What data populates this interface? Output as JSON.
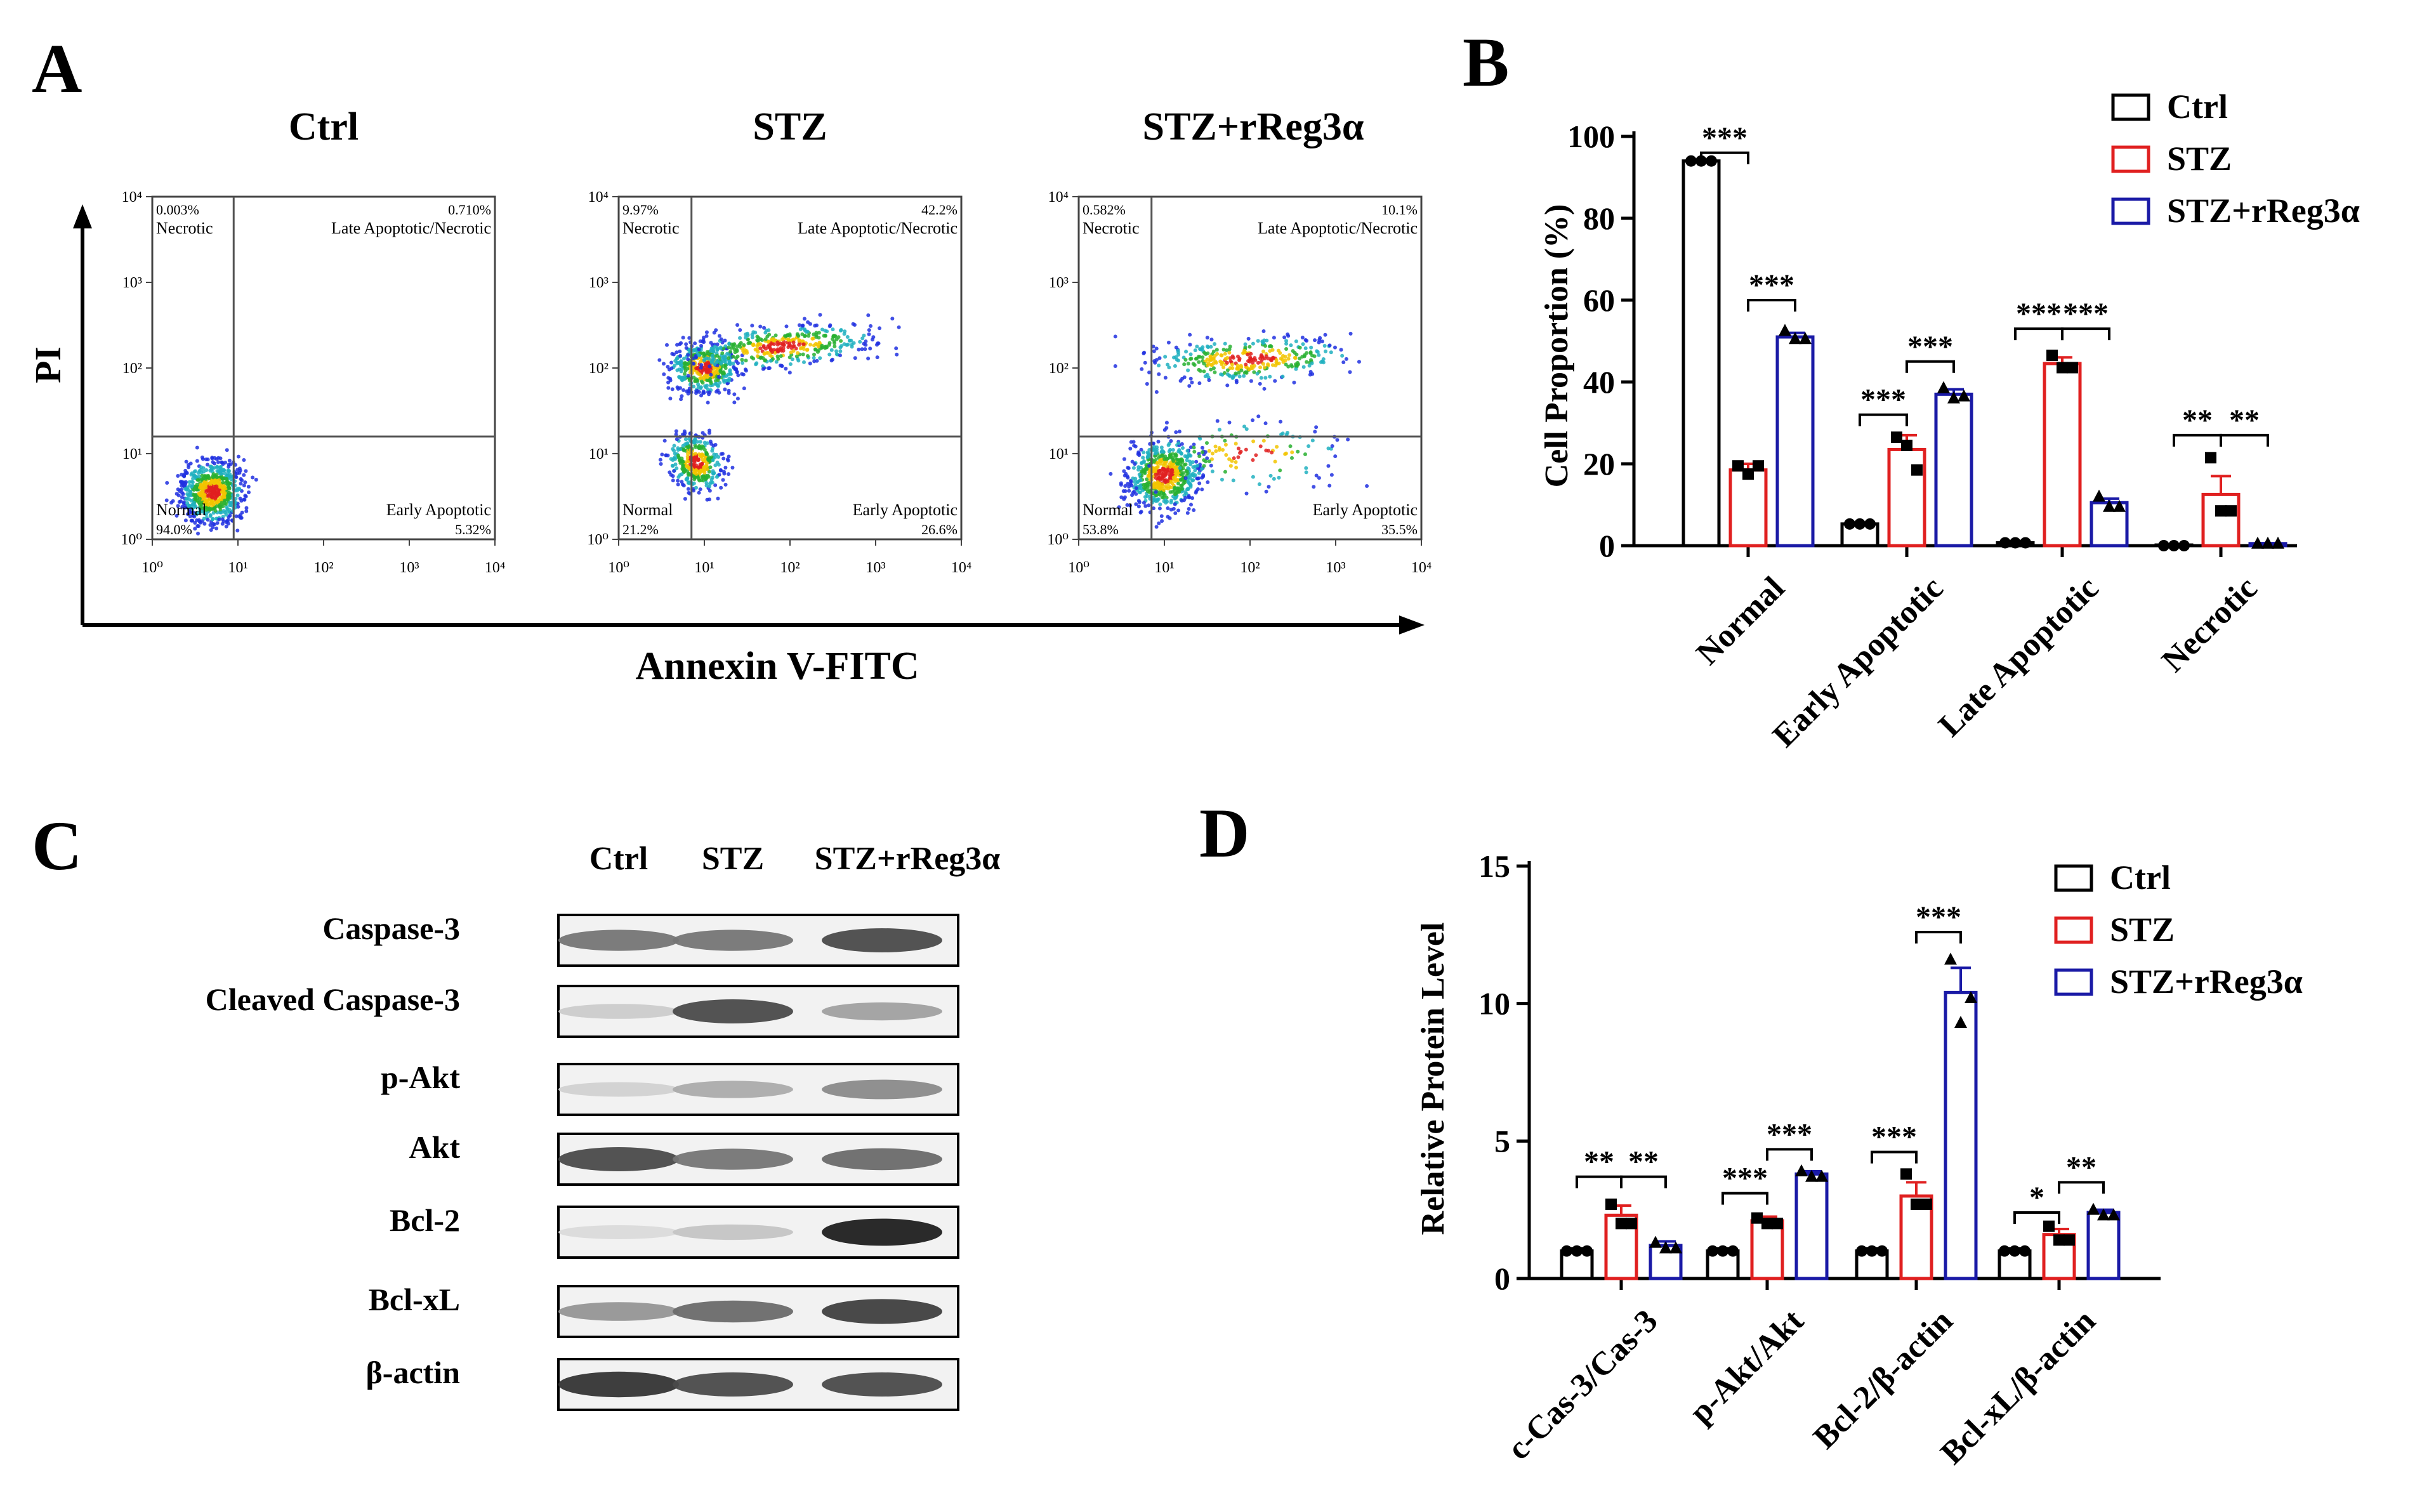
{
  "panels": {
    "A": {
      "letter": "A",
      "y_axis_label": "PI",
      "x_axis_label": "Annexin V-FITC",
      "plots": [
        {
          "title": "Ctrl",
          "q_ul": "0.003%",
          "q_ur": "0.710%",
          "q_ll": "94.0%",
          "q_lr": "5.32%"
        },
        {
          "title": "STZ",
          "q_ul": "9.97%",
          "q_ur": "42.2%",
          "q_ll": "21.2%",
          "q_lr": "26.6%"
        },
        {
          "title": "STZ+rReg3α",
          "q_ul": "0.582%",
          "q_ur": "10.1%",
          "q_ll": "53.8%",
          "q_lr": "35.5%"
        }
      ],
      "quadrant_names": {
        "ul": "Necrotic",
        "ur": "Late Apoptotic/Necrotic",
        "ll": "Normal",
        "lr": "Early Apoptotic"
      },
      "tick_labels": [
        "10⁰",
        "10¹",
        "10²",
        "10³",
        "10⁴"
      ]
    },
    "C": {
      "letter": "C",
      "lanes": [
        "Ctrl",
        "STZ",
        "STZ+rReg3α"
      ],
      "rows": [
        {
          "label": "Caspase-3",
          "intensity": [
            0.55,
            0.55,
            0.75
          ]
        },
        {
          "label": "Cleaved Caspase-3",
          "intensity": [
            0.15,
            0.75,
            0.35
          ]
        },
        {
          "label": "p-Akt",
          "intensity": [
            0.12,
            0.3,
            0.45
          ]
        },
        {
          "label": "Akt",
          "intensity": [
            0.75,
            0.55,
            0.6
          ]
        },
        {
          "label": "Bcl-2",
          "intensity": [
            0.08,
            0.18,
            0.95
          ]
        },
        {
          "label": "Bcl-xL",
          "intensity": [
            0.4,
            0.6,
            0.8
          ]
        },
        {
          "label": "β-actin",
          "intensity": [
            0.85,
            0.75,
            0.75
          ]
        }
      ]
    }
  },
  "chart_data": [
    {
      "id": "B",
      "panel_letter": "B",
      "type": "bar",
      "ylabel": "Cell Proportion (%)",
      "ylim": [
        0,
        100
      ],
      "yticks": [
        0,
        20,
        40,
        60,
        80,
        100
      ],
      "categories": [
        "Normal",
        "Early Apoptotic",
        "Late Apoptotic",
        "Necrotic"
      ],
      "series": [
        {
          "name": "Ctrl",
          "color": "#000000",
          "marker": "circle",
          "values": [
            94.0,
            5.3,
            0.7,
            0.003
          ],
          "errors": [
            0.3,
            0.3,
            0.1,
            0.0
          ],
          "points": [
            [
              94.0,
              94.0,
              94.0
            ],
            [
              5.3,
              5.3,
              5.3
            ],
            [
              0.7,
              0.7,
              0.7
            ],
            [
              0.0,
              0.0,
              0.0
            ]
          ]
        },
        {
          "name": "STZ",
          "color": "#e02020",
          "marker": "square",
          "values": [
            18.5,
            23.5,
            44.5,
            12.5
          ],
          "errors": [
            1.5,
            3.5,
            1.5,
            4.5
          ],
          "points": [
            [
              19.5,
              17.5,
              19.5
            ],
            [
              26.5,
              24.5,
              18.5
            ],
            [
              46.5,
              43.5,
              43.5
            ],
            [
              21.5,
              8.5,
              8.5
            ]
          ]
        },
        {
          "name": "STZ+rReg3α",
          "color": "#1a1aa6",
          "marker": "triangle",
          "values": [
            51.0,
            37.0,
            10.5,
            0.5
          ],
          "errors": [
            1.0,
            1.2,
            1.0,
            0.1
          ],
          "points": [
            [
              52.5,
              50.5,
              50.5
            ],
            [
              38.5,
              36.0,
              36.5
            ],
            [
              12.0,
              9.5,
              9.5
            ],
            [
              0.5,
              0.5,
              0.5
            ]
          ]
        }
      ],
      "significance": [
        {
          "category": 0,
          "pair": [
            0,
            1
          ],
          "label": "***",
          "value": 96
        },
        {
          "category": 0,
          "pair": [
            1,
            2
          ],
          "label": "***",
          "value": 60
        },
        {
          "category": 1,
          "pair": [
            1,
            2
          ],
          "label": "***",
          "value": 45
        },
        {
          "category": 1,
          "pair": [
            0,
            1
          ],
          "label": "***",
          "value": 32
        },
        {
          "category": 2,
          "pair": [
            0,
            1
          ],
          "label": "***",
          "value": 53
        },
        {
          "category": 2,
          "pair": [
            1,
            2
          ],
          "label": "***",
          "value": 53
        },
        {
          "category": 3,
          "pair": [
            0,
            1
          ],
          "label": "**",
          "value": 27
        },
        {
          "category": 3,
          "pair": [
            1,
            2
          ],
          "label": "**",
          "value": 27
        }
      ]
    },
    {
      "id": "D",
      "panel_letter": "D",
      "type": "bar",
      "ylabel": "Relative Protein Level",
      "ylim": [
        0,
        15
      ],
      "yticks": [
        0,
        5,
        10,
        15
      ],
      "categories": [
        "c-Cas-3/Cas-3",
        "p-Akt/Akt",
        "Bcl-2/β-actin",
        "Bcl-xL/β-actin"
      ],
      "series": [
        {
          "name": "Ctrl",
          "color": "#000000",
          "marker": "circle",
          "values": [
            1.0,
            1.0,
            1.0,
            1.0
          ],
          "errors": [
            0.1,
            0.1,
            0.1,
            0.1
          ],
          "points": [
            [
              1.0,
              1.0,
              1.0
            ],
            [
              1.0,
              1.0,
              1.0
            ],
            [
              1.0,
              1.0,
              1.0
            ],
            [
              1.0,
              1.0,
              1.0
            ]
          ]
        },
        {
          "name": "STZ",
          "color": "#e02020",
          "marker": "square",
          "values": [
            2.3,
            2.1,
            3.0,
            1.6
          ],
          "errors": [
            0.35,
            0.15,
            0.5,
            0.2
          ],
          "points": [
            [
              2.7,
              2.0,
              2.0
            ],
            [
              2.2,
              2.0,
              2.0
            ],
            [
              3.8,
              2.7,
              2.7
            ],
            [
              1.9,
              1.4,
              1.4
            ]
          ]
        },
        {
          "name": "STZ+rReg3α",
          "color": "#1a1aa6",
          "marker": "triangle",
          "values": [
            1.2,
            3.8,
            10.4,
            2.4
          ],
          "errors": [
            0.15,
            0.1,
            0.9,
            0.1
          ],
          "points": [
            [
              1.3,
              1.1,
              1.1
            ],
            [
              3.9,
              3.7,
              3.7
            ],
            [
              11.6,
              9.3,
              10.2
            ],
            [
              2.5,
              2.3,
              2.3
            ]
          ]
        }
      ],
      "significance": [
        {
          "category": 0,
          "pair": [
            0,
            1
          ],
          "label": "**",
          "value": 3.7
        },
        {
          "category": 0,
          "pair": [
            1,
            2
          ],
          "label": "**",
          "value": 3.7
        },
        {
          "category": 1,
          "pair": [
            0,
            1
          ],
          "label": "***",
          "value": 3.1
        },
        {
          "category": 1,
          "pair": [
            1,
            2
          ],
          "label": "***",
          "value": 4.7
        },
        {
          "category": 2,
          "pair": [
            0,
            1
          ],
          "label": "***",
          "value": 4.6
        },
        {
          "category": 2,
          "pair": [
            1,
            2
          ],
          "label": "***",
          "value": 12.6
        },
        {
          "category": 3,
          "pair": [
            0,
            1
          ],
          "label": "*",
          "value": 2.4
        },
        {
          "category": 3,
          "pair": [
            1,
            2
          ],
          "label": "**",
          "value": 3.5
        }
      ]
    }
  ]
}
